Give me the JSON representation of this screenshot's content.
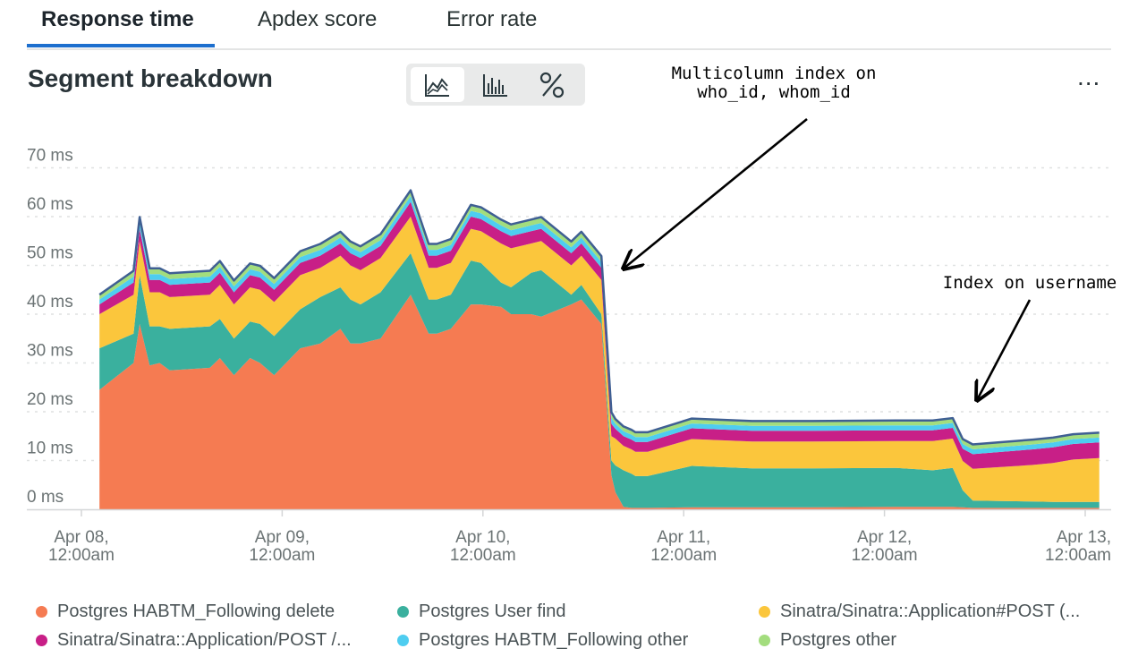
{
  "tabs": [
    {
      "label": "Response time",
      "active": true
    },
    {
      "label": "Apdex score",
      "active": false
    },
    {
      "label": "Error rate",
      "active": false
    }
  ],
  "panel": {
    "title": "Segment breakdown",
    "view_toggle": [
      {
        "icon": "area-chart-icon",
        "active": true
      },
      {
        "icon": "bar-chart-icon",
        "active": false
      },
      {
        "icon": "percent-icon",
        "active": false
      }
    ],
    "more_label": "...",
    "more_icon": "more-icon"
  },
  "annotations": [
    {
      "lines": [
        "Multicolumn index on",
        "who_id, whom_id"
      ]
    },
    {
      "lines": [
        "Index on username"
      ]
    }
  ],
  "chart_data": {
    "type": "area",
    "stacked": true,
    "y_unit": "ms",
    "ylim": [
      0,
      70
    ],
    "yticks": [
      0,
      10,
      20,
      30,
      40,
      50,
      60,
      70
    ],
    "ytick_labels": [
      "0 ms",
      "10 ms",
      "20 ms",
      "30 ms",
      "40 ms",
      "50 ms",
      "60 ms",
      "70 ms"
    ],
    "xlim": [
      -0.08,
      5.07
    ],
    "xticks": [
      0,
      1,
      2,
      3,
      4,
      5
    ],
    "xtick_labels": [
      [
        "Apr 08,",
        "12:00am"
      ],
      [
        "Apr 09,",
        "12:00am"
      ],
      [
        "Apr 10,",
        "12:00am"
      ],
      [
        "Apr 11,",
        "12:00am"
      ],
      [
        "Apr 12,",
        "12:00am"
      ],
      [
        "Apr 13,",
        "12:00am"
      ]
    ],
    "grid": true,
    "legend_position": "bottom",
    "x": [
      0.09,
      0.26,
      0.29,
      0.34,
      0.39,
      0.44,
      0.64,
      0.69,
      0.76,
      0.84,
      0.89,
      0.96,
      1.09,
      1.19,
      1.29,
      1.34,
      1.39,
      1.49,
      1.64,
      1.73,
      1.77,
      1.84,
      1.94,
      1.99,
      2.09,
      2.14,
      2.24,
      2.29,
      2.44,
      2.49,
      2.59,
      2.64,
      2.66,
      2.7,
      2.74,
      2.76,
      2.82,
      3.04,
      3.34,
      3.44,
      3.64,
      4.06,
      4.24,
      4.34,
      4.39,
      4.44,
      4.74,
      4.84,
      4.94,
      5.07
    ],
    "series": [
      {
        "name": "Postgres HABTM_Following delete",
        "color": "#f57b52",
        "values": [
          24.5,
          30,
          38,
          29.5,
          30,
          28.5,
          29,
          31,
          27.5,
          31,
          30,
          27.5,
          33,
          34,
          37,
          34,
          34,
          35,
          44,
          36,
          36,
          37,
          42,
          42,
          41.5,
          40,
          40,
          39.5,
          42,
          43,
          38,
          7,
          3.5,
          0.5,
          0.3,
          0.3,
          0.3,
          0.4,
          0.4,
          0.4,
          0.4,
          0.5,
          0.5,
          0.5,
          0.4,
          0.3,
          0.3,
          0.3,
          0.3,
          0.3
        ]
      },
      {
        "name": "Postgres User find",
        "color": "#3ab09e",
        "values": [
          8.5,
          6,
          10,
          8,
          7.5,
          8.5,
          8.5,
          8,
          7.5,
          7.5,
          8,
          8,
          8,
          9.5,
          8.5,
          9,
          8,
          9.5,
          8.5,
          7,
          7,
          7,
          9,
          8.5,
          5,
          5.5,
          8.5,
          9.5,
          2,
          3,
          2,
          3,
          5.5,
          7.5,
          7,
          6.5,
          6.5,
          8.5,
          8,
          8,
          8,
          8,
          7.5,
          8,
          3.5,
          1.5,
          1.3,
          1.2,
          1.2,
          1.2
        ]
      },
      {
        "name": "Sinatra/Sinatra::Application#POST (...",
        "color": "#fbc63c",
        "values": [
          7,
          8,
          7,
          7,
          7,
          6.5,
          6.5,
          7,
          7,
          7,
          7,
          7,
          7,
          6,
          6.5,
          7,
          7,
          7,
          7.5,
          6.5,
          6.5,
          6.5,
          6.5,
          6.5,
          8,
          8,
          6,
          6,
          6,
          6,
          7,
          5,
          5.5,
          5,
          5,
          5,
          5,
          5.5,
          5.5,
          5.5,
          5.5,
          5.5,
          6,
          6,
          6,
          6.5,
          7.5,
          8.0,
          8.7,
          9
        ]
      },
      {
        "name": "Sinatra/Sinatra::Application/POST /...",
        "color": "#c81f87",
        "values": [
          2,
          2.5,
          2.5,
          2.5,
          2.5,
          2.5,
          2.5,
          2.5,
          2.5,
          2.5,
          2.5,
          2.5,
          2.5,
          2.5,
          2.5,
          2.5,
          2.5,
          2.5,
          3,
          2.5,
          2.5,
          2.5,
          2.5,
          2.5,
          2.5,
          2.5,
          2.5,
          2.5,
          2.5,
          2.5,
          2.5,
          2.5,
          2.0,
          2.0,
          2.0,
          2.0,
          2.0,
          2.2,
          2.2,
          2.2,
          2.2,
          2.2,
          2.2,
          2.2,
          2.5,
          3.0,
          3.2,
          3.2,
          3.2,
          3.2
        ]
      },
      {
        "name": "Postgres HABTM_Following other",
        "color": "#4ecdf0",
        "values": [
          1,
          1.2,
          1.2,
          1.2,
          1.2,
          1.2,
          1.2,
          1.2,
          1.2,
          1.2,
          1.2,
          1.2,
          1.2,
          1.2,
          1.2,
          1.2,
          1.2,
          1.2,
          1.2,
          1.2,
          1.2,
          1.2,
          1.2,
          1.2,
          1.2,
          1.2,
          1.2,
          1.2,
          1.2,
          1.2,
          1.2,
          1.2,
          1.0,
          1.0,
          1.0,
          1.0,
          1.0,
          1.0,
          1.0,
          1.0,
          1.0,
          1.0,
          1.0,
          1.0,
          1.0,
          1.0,
          1.0,
          1.0,
          1.0,
          1.0
        ]
      },
      {
        "name": "Postgres other",
        "color": "#a3dd7e",
        "values": [
          1,
          1.2,
          1.2,
          1.2,
          1.2,
          1.2,
          1.2,
          1.2,
          1.2,
          1.2,
          1.2,
          1.2,
          1.2,
          1.2,
          1.2,
          1.2,
          1.2,
          1.2,
          1.2,
          1.2,
          1.2,
          1.2,
          1.2,
          1.2,
          1.2,
          1.2,
          1.2,
          1.2,
          1.2,
          1.2,
          1.2,
          1.2,
          1.0,
          1.0,
          1.0,
          1.0,
          1.0,
          1.0,
          1.0,
          1.0,
          1.0,
          1.0,
          1.0,
          1.0,
          1.0,
          1.0,
          1.0,
          1.0,
          1.0,
          1.0
        ]
      }
    ],
    "total_line_color": "#3f5f93"
  }
}
